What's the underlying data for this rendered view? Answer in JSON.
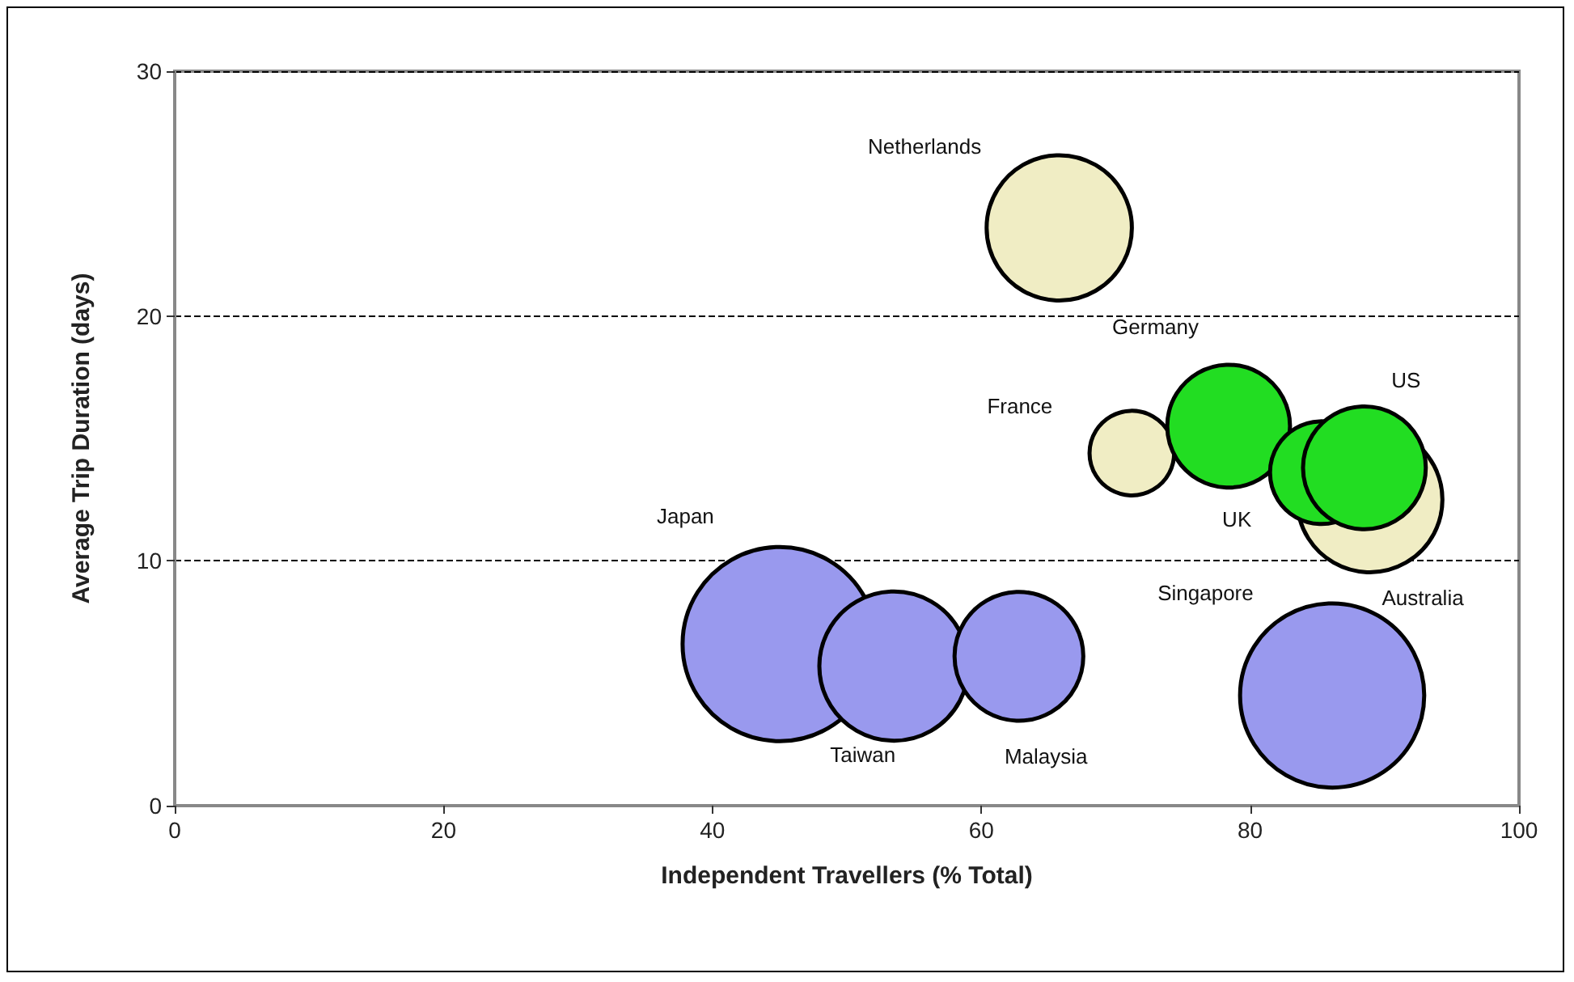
{
  "chart_data": {
    "type": "bubble",
    "xlabel": "Independent Travellers (% Total)",
    "ylabel": "Average Trip Duration (days)",
    "xlim": [
      0,
      100
    ],
    "xticks": [
      0,
      20,
      40,
      60,
      80,
      100
    ],
    "ylim": [
      0,
      30
    ],
    "yticks": [
      0,
      10,
      20,
      30
    ],
    "grid": "y",
    "series": [
      {
        "color": "#f0edc4",
        "x": [
          65.8,
          71.2,
          88.9
        ],
        "values": [
          23.6,
          14.4,
          12.5
        ],
        "sizes": [
          0.56,
          0.19,
          0.56
        ],
        "value_labels": [
          "Netherlands",
          "France",
          "Australia"
        ]
      },
      {
        "color": "#22dd22",
        "x": [
          78.4,
          85.3,
          88.5
        ],
        "values": [
          15.5,
          13.6,
          13.8
        ],
        "sizes": [
          0.4,
          0.28,
          0.4
        ],
        "value_labels": [
          "Germany",
          "UK",
          "US"
        ]
      },
      {
        "color": "#9999ee",
        "x": [
          45.0,
          53.5,
          62.8,
          86.1
        ],
        "values": [
          6.6,
          5.7,
          6.1,
          4.5
        ],
        "sizes": [
          1,
          0.59,
          0.44,
          0.9
        ],
        "value_labels": [
          "Japan",
          "Taiwan",
          "Malaysia",
          "Singapore"
        ]
      }
    ]
  }
}
